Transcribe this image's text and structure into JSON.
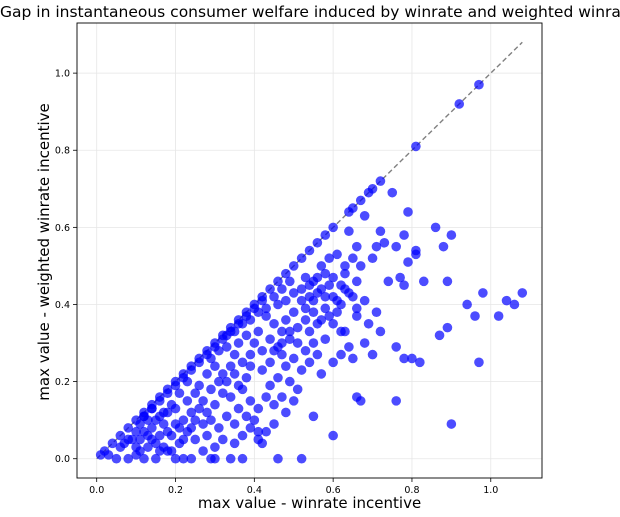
{
  "chart_data": {
    "type": "scatter",
    "title": "Gap in instantaneous consumer welfare induced by winrate and weighted winrate",
    "xlabel": "max value - winrate incentive",
    "ylabel": "max value - weighted winrate incentive",
    "xlim": [
      -0.05,
      1.13
    ],
    "ylim": [
      -0.05,
      1.13
    ],
    "xticks": [
      "0.0",
      "0.2",
      "0.4",
      "0.6",
      "0.8",
      "1.0"
    ],
    "yticks": [
      "0.0",
      "0.2",
      "0.4",
      "0.6",
      "0.8",
      "1.0"
    ],
    "grid": true,
    "point_color": "#0000ff",
    "reference_line": {
      "style": "dashed",
      "color": "#808080",
      "from": [
        0.0,
        0.0
      ],
      "to": [
        1.08,
        1.08
      ]
    },
    "series": [
      {
        "points": [
          [
            0.97,
            0.97
          ],
          [
            0.92,
            0.92
          ],
          [
            0.81,
            0.81
          ],
          [
            0.72,
            0.72
          ],
          [
            0.7,
            0.7
          ],
          [
            0.69,
            0.69
          ],
          [
            0.67,
            0.67
          ],
          [
            0.65,
            0.65
          ],
          [
            0.64,
            0.64
          ],
          [
            0.6,
            0.6
          ],
          [
            0.58,
            0.58
          ],
          [
            0.56,
            0.56
          ],
          [
            0.54,
            0.54
          ],
          [
            0.52,
            0.52
          ],
          [
            0.5,
            0.5
          ],
          [
            0.48,
            0.48
          ],
          [
            0.46,
            0.46
          ],
          [
            0.44,
            0.44
          ],
          [
            0.42,
            0.42
          ],
          [
            0.4,
            0.4
          ],
          [
            0.38,
            0.38
          ],
          [
            0.36,
            0.36
          ],
          [
            0.34,
            0.34
          ],
          [
            0.32,
            0.32
          ],
          [
            0.3,
            0.3
          ],
          [
            0.28,
            0.28
          ],
          [
            0.26,
            0.26
          ],
          [
            0.24,
            0.24
          ],
          [
            0.22,
            0.22
          ],
          [
            0.2,
            0.2
          ],
          [
            0.18,
            0.18
          ],
          [
            0.16,
            0.16
          ],
          [
            0.14,
            0.14
          ],
          [
            0.12,
            0.12
          ],
          [
            0.1,
            0.1
          ],
          [
            0.08,
            0.08
          ],
          [
            0.06,
            0.06
          ],
          [
            0.04,
            0.04
          ],
          [
            0.02,
            0.02
          ],
          [
            0.01,
            0.01
          ],
          [
            0.75,
            0.69
          ],
          [
            0.79,
            0.64
          ],
          [
            0.86,
            0.6
          ],
          [
            0.9,
            0.58
          ],
          [
            0.88,
            0.55
          ],
          [
            0.81,
            0.54
          ],
          [
            0.78,
            0.58
          ],
          [
            0.72,
            0.59
          ],
          [
            0.73,
            0.56
          ],
          [
            0.71,
            0.55
          ],
          [
            0.68,
            0.63
          ],
          [
            0.7,
            0.52
          ],
          [
            0.66,
            0.55
          ],
          [
            0.64,
            0.59
          ],
          [
            0.67,
            0.5
          ],
          [
            0.63,
            0.48
          ],
          [
            0.62,
            0.45
          ],
          [
            0.66,
            0.46
          ],
          [
            0.6,
            0.47
          ],
          [
            0.58,
            0.48
          ],
          [
            0.76,
            0.55
          ],
          [
            0.79,
            0.51
          ],
          [
            0.81,
            0.53
          ],
          [
            0.77,
            0.47
          ],
          [
            0.74,
            0.46
          ],
          [
            0.78,
            0.45
          ],
          [
            0.83,
            0.46
          ],
          [
            0.89,
            0.46
          ],
          [
            0.64,
            0.43
          ],
          [
            0.61,
            0.41
          ],
          [
            0.68,
            0.41
          ],
          [
            0.71,
            0.38
          ],
          [
            0.66,
            0.37
          ],
          [
            0.69,
            0.35
          ],
          [
            0.72,
            0.33
          ],
          [
            0.63,
            0.33
          ],
          [
            0.68,
            0.3
          ],
          [
            0.7,
            0.27
          ],
          [
            0.64,
            0.29
          ],
          [
            0.62,
            0.27
          ],
          [
            0.6,
            0.25
          ],
          [
            0.65,
            0.26
          ],
          [
            0.76,
            0.29
          ],
          [
            0.78,
            0.26
          ],
          [
            0.8,
            0.26
          ],
          [
            0.82,
            0.25
          ],
          [
            0.87,
            0.32
          ],
          [
            0.89,
            0.34
          ],
          [
            0.94,
            0.4
          ],
          [
            0.96,
            0.37
          ],
          [
            0.98,
            0.43
          ],
          [
            1.02,
            0.37
          ],
          [
            1.04,
            0.41
          ],
          [
            1.06,
            0.4
          ],
          [
            1.08,
            0.43
          ],
          [
            0.97,
            0.25
          ],
          [
            0.9,
            0.09
          ],
          [
            0.76,
            0.15
          ],
          [
            0.67,
            0.15
          ],
          [
            0.66,
            0.16
          ],
          [
            0.6,
            0.06
          ],
          [
            0.55,
            0.11
          ],
          [
            0.52,
            0.0
          ],
          [
            0.46,
            0.0
          ],
          [
            0.41,
            0.07
          ],
          [
            0.42,
            0.04
          ],
          [
            0.37,
            0.0
          ],
          [
            0.34,
            0.0
          ],
          [
            0.3,
            0.0
          ],
          [
            0.29,
            0.0
          ],
          [
            0.24,
            0.0
          ],
          [
            0.22,
            0.0
          ],
          [
            0.2,
            0.0
          ],
          [
            0.18,
            0.02
          ],
          [
            0.15,
            0.0
          ],
          [
            0.12,
            0.0
          ],
          [
            0.1,
            0.01
          ],
          [
            0.08,
            0.0
          ],
          [
            0.05,
            0.0
          ],
          [
            0.03,
            0.01
          ],
          [
            0.56,
            0.43
          ],
          [
            0.54,
            0.42
          ],
          [
            0.52,
            0.41
          ],
          [
            0.55,
            0.38
          ],
          [
            0.57,
            0.36
          ],
          [
            0.58,
            0.39
          ],
          [
            0.53,
            0.36
          ],
          [
            0.5,
            0.38
          ],
          [
            0.48,
            0.36
          ],
          [
            0.51,
            0.34
          ],
          [
            0.49,
            0.31
          ],
          [
            0.47,
            0.33
          ],
          [
            0.45,
            0.35
          ],
          [
            0.43,
            0.37
          ],
          [
            0.44,
            0.31
          ],
          [
            0.46,
            0.29
          ],
          [
            0.42,
            0.28
          ],
          [
            0.4,
            0.3
          ],
          [
            0.41,
            0.33
          ],
          [
            0.38,
            0.32
          ],
          [
            0.36,
            0.3
          ],
          [
            0.39,
            0.27
          ],
          [
            0.37,
            0.25
          ],
          [
            0.35,
            0.27
          ],
          [
            0.33,
            0.29
          ],
          [
            0.34,
            0.24
          ],
          [
            0.32,
            0.22
          ],
          [
            0.3,
            0.24
          ],
          [
            0.31,
            0.2
          ],
          [
            0.29,
            0.18
          ],
          [
            0.28,
            0.22
          ],
          [
            0.26,
            0.19
          ],
          [
            0.27,
            0.15
          ],
          [
            0.25,
            0.17
          ],
          [
            0.23,
            0.15
          ],
          [
            0.24,
            0.12
          ],
          [
            0.22,
            0.1
          ],
          [
            0.2,
            0.13
          ],
          [
            0.21,
            0.08
          ],
          [
            0.19,
            0.06
          ],
          [
            0.17,
            0.09
          ],
          [
            0.18,
            0.12
          ],
          [
            0.16,
            0.06
          ],
          [
            0.14,
            0.08
          ],
          [
            0.15,
            0.04
          ],
          [
            0.13,
            0.03
          ],
          [
            0.11,
            0.05
          ],
          [
            0.12,
            0.07
          ],
          [
            0.1,
            0.03
          ],
          [
            0.09,
            0.05
          ],
          [
            0.5,
            0.26
          ],
          [
            0.53,
            0.28
          ],
          [
            0.55,
            0.3
          ],
          [
            0.52,
            0.23
          ],
          [
            0.48,
            0.24
          ],
          [
            0.46,
            0.21
          ],
          [
            0.44,
            0.19
          ],
          [
            0.49,
            0.2
          ],
          [
            0.51,
            0.18
          ],
          [
            0.47,
            0.16
          ],
          [
            0.45,
            0.14
          ],
          [
            0.43,
            0.16
          ],
          [
            0.41,
            0.13
          ],
          [
            0.39,
            0.15
          ],
          [
            0.4,
            0.1
          ],
          [
            0.38,
            0.11
          ],
          [
            0.36,
            0.13
          ],
          [
            0.35,
            0.09
          ],
          [
            0.33,
            0.11
          ],
          [
            0.31,
            0.08
          ],
          [
            0.34,
            0.16
          ],
          [
            0.36,
            0.19
          ],
          [
            0.38,
            0.21
          ],
          [
            0.42,
            0.23
          ],
          [
            0.44,
            0.25
          ],
          [
            0.47,
            0.27
          ],
          [
            0.54,
            0.33
          ],
          [
            0.56,
            0.35
          ],
          [
            0.59,
            0.37
          ],
          [
            0.61,
            0.38
          ],
          [
            0.62,
            0.4
          ],
          [
            0.6,
            0.42
          ],
          [
            0.57,
            0.44
          ],
          [
            0.55,
            0.46
          ],
          [
            0.53,
            0.47
          ],
          [
            0.59,
            0.45
          ],
          [
            0.63,
            0.44
          ],
          [
            0.65,
            0.42
          ],
          [
            0.58,
            0.31
          ],
          [
            0.56,
            0.27
          ],
          [
            0.54,
            0.25
          ],
          [
            0.57,
            0.22
          ],
          [
            0.5,
            0.15
          ],
          [
            0.48,
            0.12
          ],
          [
            0.45,
            0.09
          ],
          [
            0.43,
            0.07
          ],
          [
            0.41,
            0.05
          ],
          [
            0.39,
            0.08
          ],
          [
            0.37,
            0.06
          ],
          [
            0.35,
            0.04
          ],
          [
            0.32,
            0.05
          ],
          [
            0.3,
            0.03
          ],
          [
            0.28,
            0.06
          ],
          [
            0.27,
            0.09
          ],
          [
            0.25,
            0.05
          ],
          [
            0.23,
            0.07
          ],
          [
            0.21,
            0.04
          ],
          [
            0.19,
            0.02
          ],
          [
            0.17,
            0.03
          ],
          [
            0.16,
            0.11
          ],
          [
            0.14,
            0.13
          ],
          [
            0.13,
            0.1
          ],
          [
            0.12,
            0.11
          ],
          [
            0.11,
            0.09
          ],
          [
            0.1,
            0.07
          ],
          [
            0.08,
            0.05
          ],
          [
            0.07,
            0.04
          ],
          [
            0.06,
            0.03
          ],
          [
            0.26,
            0.13
          ],
          [
            0.28,
            0.12
          ],
          [
            0.3,
            0.14
          ],
          [
            0.32,
            0.17
          ],
          [
            0.29,
            0.26
          ],
          [
            0.31,
            0.28
          ],
          [
            0.33,
            0.32
          ],
          [
            0.35,
            0.33
          ],
          [
            0.37,
            0.35
          ],
          [
            0.39,
            0.36
          ],
          [
            0.41,
            0.38
          ],
          [
            0.43,
            0.39
          ],
          [
            0.46,
            0.4
          ],
          [
            0.48,
            0.41
          ],
          [
            0.5,
            0.43
          ],
          [
            0.52,
            0.44
          ],
          [
            0.54,
            0.45
          ],
          [
            0.56,
            0.47
          ],
          [
            0.49,
            0.46
          ],
          [
            0.47,
            0.44
          ],
          [
            0.45,
            0.42
          ],
          [
            0.42,
            0.41
          ],
          [
            0.4,
            0.39
          ],
          [
            0.38,
            0.37
          ],
          [
            0.36,
            0.35
          ],
          [
            0.34,
            0.33
          ],
          [
            0.32,
            0.31
          ],
          [
            0.3,
            0.29
          ],
          [
            0.28,
            0.27
          ],
          [
            0.26,
            0.25
          ],
          [
            0.24,
            0.23
          ],
          [
            0.22,
            0.21
          ],
          [
            0.2,
            0.19
          ],
          [
            0.18,
            0.17
          ],
          [
            0.16,
            0.15
          ],
          [
            0.14,
            0.13
          ],
          [
            0.12,
            0.11
          ],
          [
            0.57,
            0.5
          ],
          [
            0.59,
            0.52
          ],
          [
            0.61,
            0.53
          ],
          [
            0.63,
            0.5
          ],
          [
            0.65,
            0.52
          ],
          [
            0.25,
            0.1
          ],
          [
            0.23,
            0.2
          ],
          [
            0.21,
            0.17
          ],
          [
            0.19,
            0.14
          ],
          [
            0.17,
            0.12
          ],
          [
            0.15,
            0.1
          ],
          [
            0.33,
            0.2
          ],
          [
            0.35,
            0.22
          ],
          [
            0.37,
            0.18
          ],
          [
            0.39,
            0.24
          ],
          [
            0.45,
            0.28
          ],
          [
            0.47,
            0.3
          ],
          [
            0.49,
            0.33
          ],
          [
            0.51,
            0.3
          ],
          [
            0.53,
            0.39
          ],
          [
            0.55,
            0.41
          ],
          [
            0.58,
            0.42
          ],
          [
            0.6,
            0.35
          ],
          [
            0.62,
            0.33
          ],
          [
            0.66,
            0.39
          ],
          [
            0.29,
            0.1
          ],
          [
            0.27,
            0.02
          ],
          [
            0.24,
            0.08
          ],
          [
            0.22,
            0.05
          ],
          [
            0.2,
            0.09
          ],
          [
            0.18,
            0.07
          ],
          [
            0.16,
            0.02
          ],
          [
            0.14,
            0.05
          ],
          [
            0.13,
            0.06
          ],
          [
            0.11,
            0.02
          ]
        ]
      }
    ]
  }
}
